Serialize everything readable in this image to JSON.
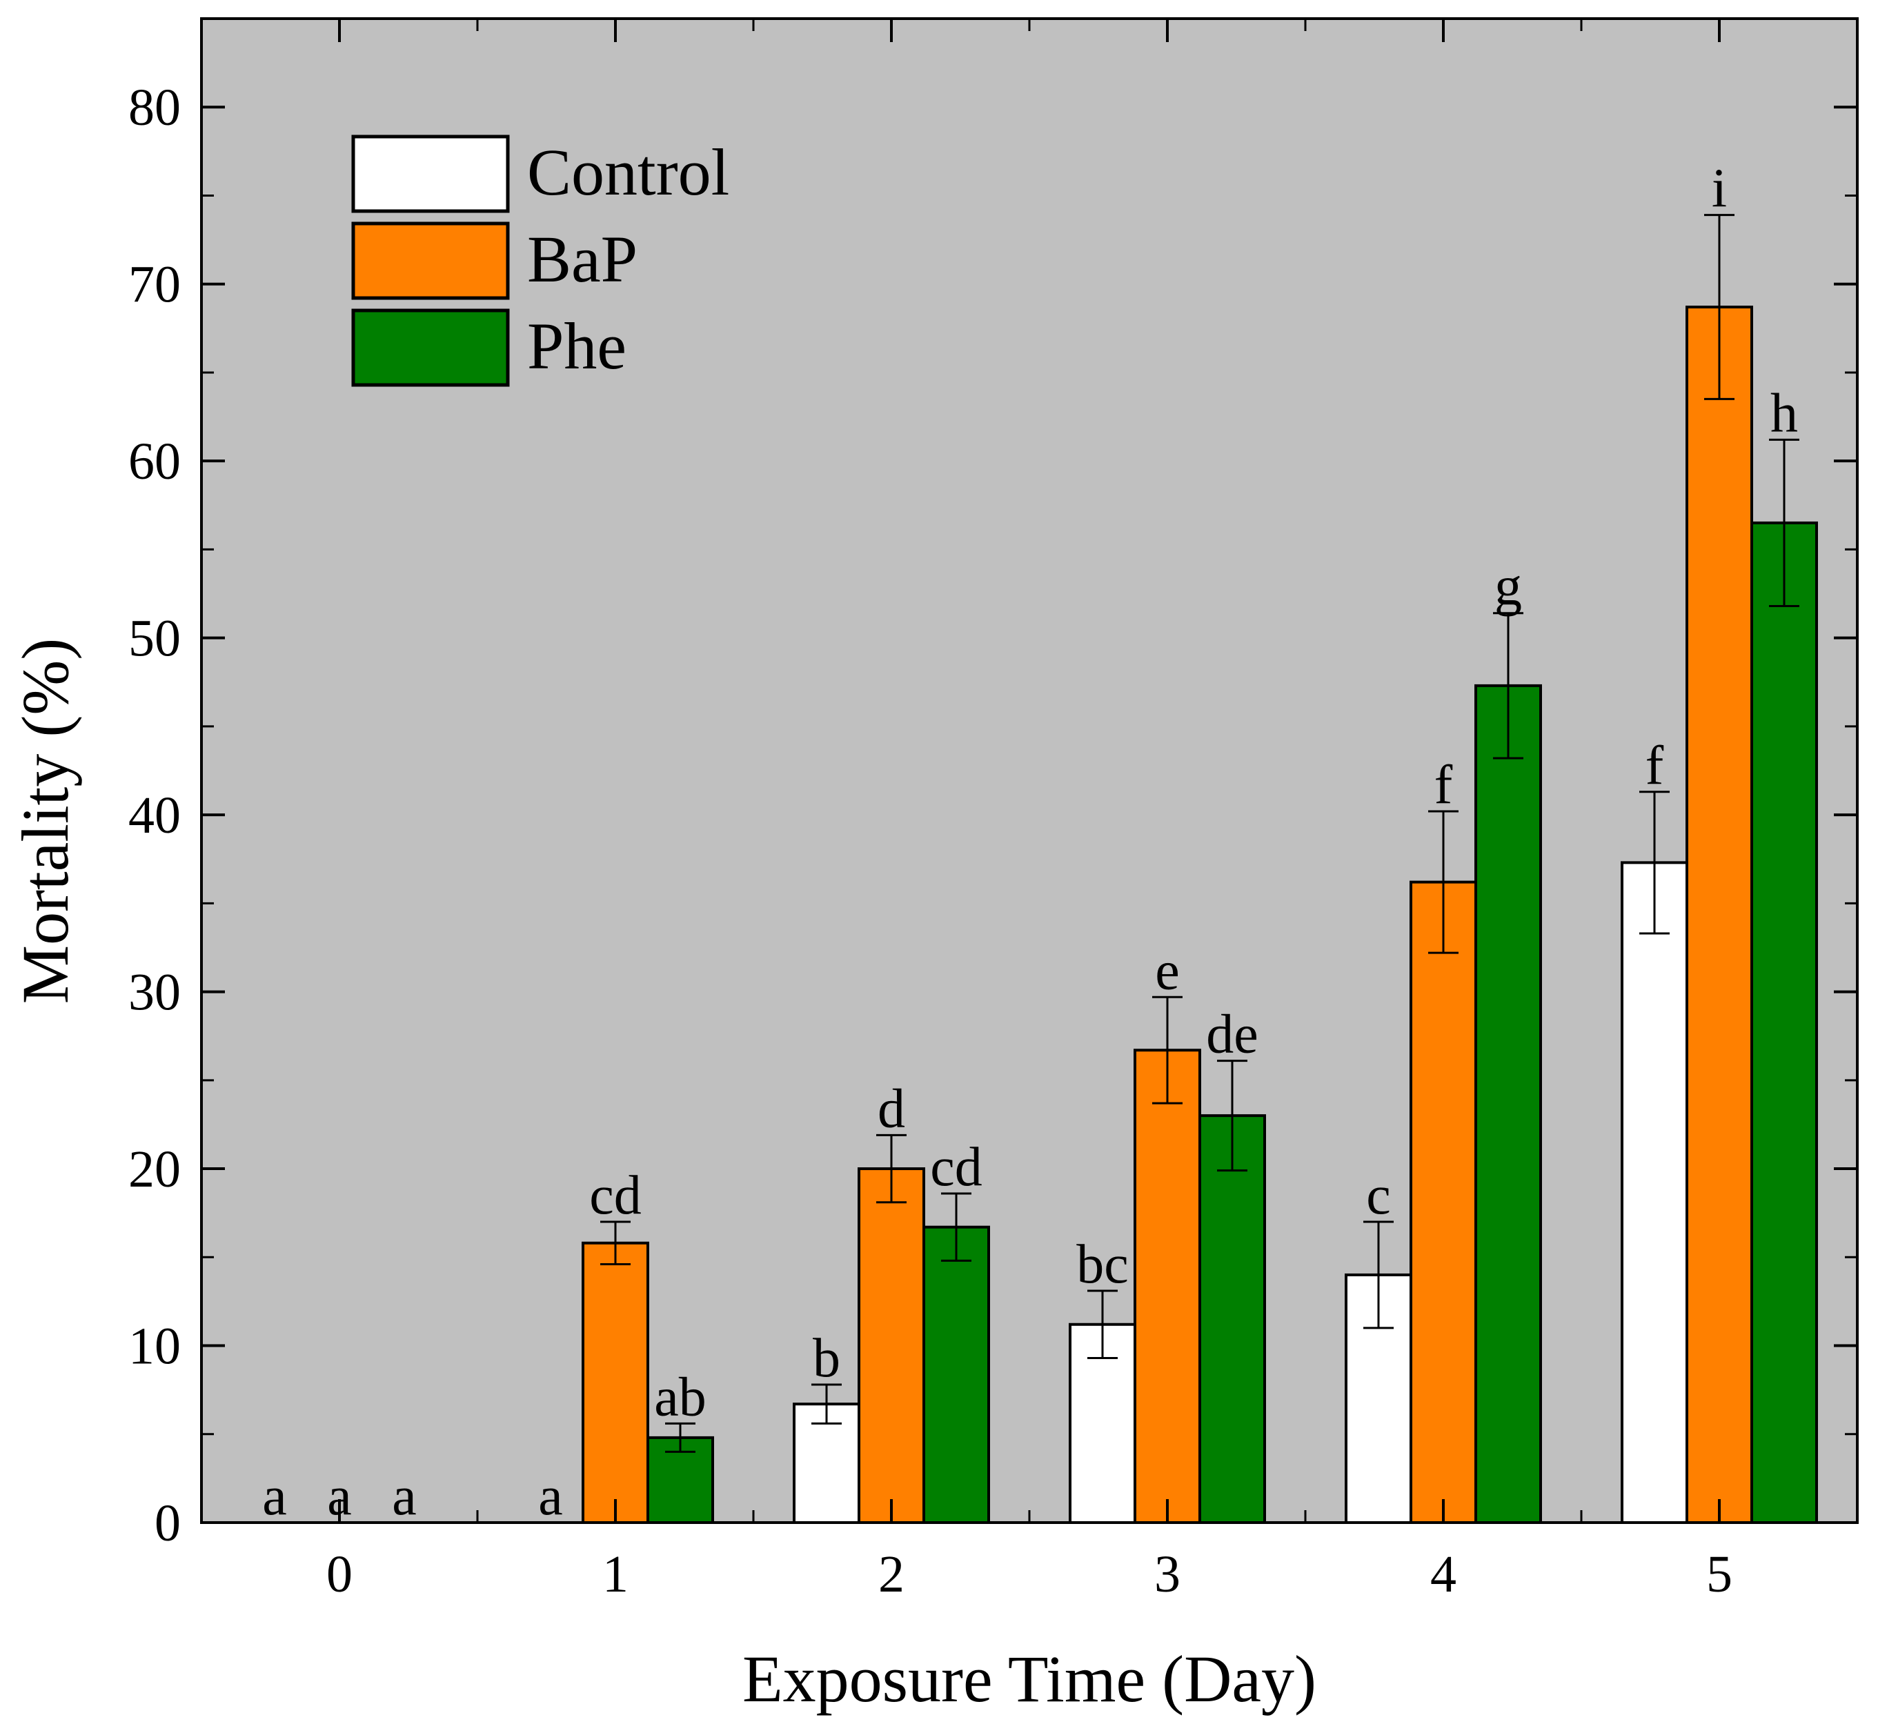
{
  "chart_data": {
    "type": "bar",
    "xlabel": "Exposure Time (Day)",
    "ylabel": "Mortality (%)",
    "categories": [
      "0",
      "1",
      "2",
      "3",
      "4",
      "5"
    ],
    "ylim": [
      0,
      85
    ],
    "yticks": [
      0,
      10,
      20,
      30,
      40,
      50,
      60,
      70,
      80
    ],
    "legend_position": "top-left",
    "series": [
      {
        "name": "Control",
        "color": "#ffffff",
        "values": [
          0,
          0,
          6.7,
          11.2,
          14.0,
          37.3
        ],
        "errors": [
          0,
          0,
          1.1,
          1.9,
          3.0,
          4.0
        ],
        "labels": [
          "a",
          "a",
          "b",
          "bc",
          "c",
          "f"
        ]
      },
      {
        "name": "BaP",
        "color": "#ff8000",
        "values": [
          0,
          15.8,
          20.0,
          26.7,
          36.2,
          68.7
        ],
        "errors": [
          0,
          1.2,
          1.9,
          3.0,
          4.0,
          5.2
        ],
        "labels": [
          "a",
          "cd",
          "d",
          "e",
          "f",
          "i"
        ]
      },
      {
        "name": "Phe",
        "color": "#007f00",
        "values": [
          0,
          4.8,
          16.7,
          23.0,
          47.3,
          56.5
        ],
        "errors": [
          0,
          0.8,
          1.9,
          3.1,
          4.1,
          4.7
        ],
        "labels": [
          "a",
          "ab",
          "cd",
          "de",
          "g",
          "h"
        ]
      }
    ]
  }
}
